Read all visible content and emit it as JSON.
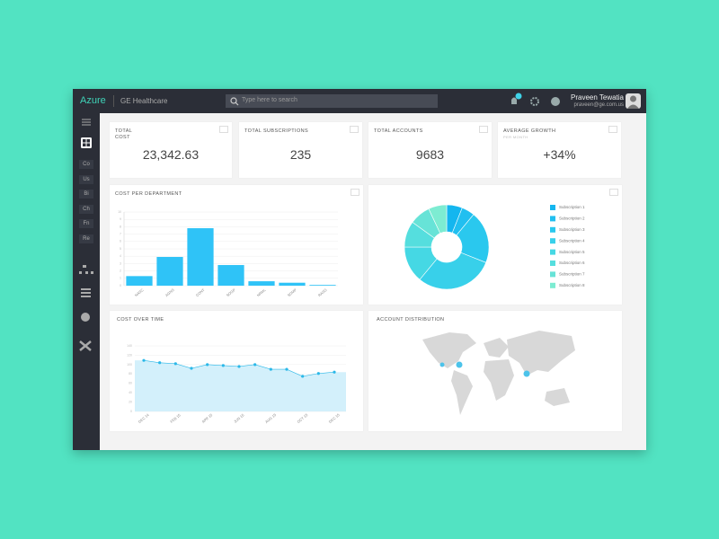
{
  "header": {
    "brand": "Azure",
    "org": "GE Healthcare",
    "search_placeholder": "Type here to search",
    "user_name": "Praveen Tewatia",
    "user_email": "praveen@ge.com.us"
  },
  "sidebar": {
    "items": [
      "Co",
      "Us",
      "Bi",
      "Ch",
      "Fn",
      "Re"
    ]
  },
  "kpis": [
    {
      "label": "TOTAL COST",
      "value": "23,342.63"
    },
    {
      "label": "TOTAL SUBSCRIPTIONS",
      "value": "235"
    },
    {
      "label": "TOTAL ACCOUNTS",
      "value": "9683"
    },
    {
      "label": "AVERAGE GROWTH",
      "sublabel": "PER MONTH",
      "value": "+34%"
    }
  ],
  "chart_data": [
    {
      "type": "bar",
      "title": "COST PER DEPARTMENT",
      "categories": [
        "NASC",
        "AGNS",
        "CONT",
        "SOGP",
        "NRML",
        "SDMP",
        "RASG"
      ],
      "values": [
        1.3,
        3.9,
        7.8,
        2.8,
        0.6,
        0.4,
        0.1
      ],
      "color": "#2fc3f7",
      "ylim": [
        0,
        10
      ],
      "yticks": [
        0,
        1,
        2,
        3,
        4,
        5,
        6,
        7,
        8,
        9,
        10
      ],
      "grid": true
    },
    {
      "type": "pie",
      "donut": true,
      "categories": [
        "Subscription 1",
        "Subscription 2",
        "Subscription 3",
        "Subscription 4",
        "Subscription 5",
        "Subscription 6",
        "Subscription 7",
        "Subscription 8"
      ],
      "values": [
        6,
        5,
        20,
        30,
        14,
        10,
        8,
        7
      ],
      "colors": [
        "#14b6ef",
        "#21bff0",
        "#2ac8ee",
        "#38d0ea",
        "#45d8e4",
        "#55dede",
        "#67e3d7",
        "#7decd2"
      ]
    },
    {
      "type": "line",
      "title": "COST OVER TIME",
      "x": [
        "DEC 14",
        null,
        "FEB 15",
        null,
        "APR 15",
        null,
        "JUN 15",
        null,
        "AUG 15",
        null,
        "OCT 15",
        null,
        "DEC 15"
      ],
      "values": [
        109,
        104,
        102,
        92,
        100,
        98,
        96,
        100,
        90,
        90,
        75,
        81,
        84
      ],
      "color": "#2bb8e8",
      "area_color": "#d3f0fb",
      "ylim": [
        0,
        140
      ],
      "yticks": [
        0,
        20,
        40,
        60,
        80,
        100,
        120,
        140
      ],
      "grid": true
    }
  ],
  "map": {
    "title": "ACCOUNT DISTRIBUTION"
  }
}
